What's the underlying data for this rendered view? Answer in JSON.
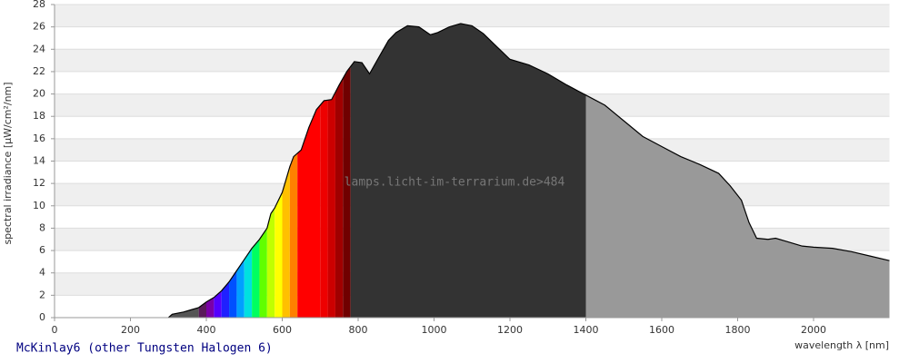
{
  "chart_data": {
    "type": "area",
    "title": "McKinlay6 (other Tungsten Halogen 6)",
    "watermark": "lamps.licht-im-terrarium.de>484",
    "x_label": "wavelength λ [nm]",
    "y_label": "spectral irradiance [µW/cm²/nm]",
    "x": [
      300,
      310,
      340,
      360,
      380,
      400,
      420,
      440,
      460,
      480,
      500,
      520,
      540,
      560,
      570,
      580,
      600,
      620,
      630,
      650,
      670,
      690,
      710,
      730,
      750,
      770,
      790,
      810,
      830,
      850,
      880,
      900,
      930,
      960,
      990,
      1010,
      1040,
      1070,
      1100,
      1130,
      1160,
      1200,
      1250,
      1300,
      1350,
      1400,
      1450,
      1500,
      1550,
      1600,
      1650,
      1700,
      1750,
      1780,
      1810,
      1830,
      1850,
      1880,
      1900,
      1930,
      1970,
      2000,
      2050,
      2100,
      2150,
      2200
    ],
    "values": [
      0,
      0.3,
      0.5,
      0.7,
      0.9,
      1.4,
      1.8,
      2.4,
      3.2,
      4.2,
      5.2,
      6.2,
      7.0,
      8.0,
      9.3,
      9.8,
      11.2,
      13.5,
      14.4,
      15.0,
      17.0,
      18.6,
      19.4,
      19.5,
      20.8,
      22.0,
      22.9,
      22.8,
      21.8,
      23.0,
      24.8,
      25.5,
      26.1,
      26.0,
      25.3,
      25.5,
      26.0,
      26.3,
      26.1,
      25.4,
      24.4,
      23.1,
      22.6,
      21.8,
      20.8,
      19.9,
      19.0,
      17.6,
      16.2,
      15.3,
      14.4,
      13.7,
      12.9,
      11.8,
      10.5,
      8.5,
      7.1,
      7.0,
      7.1,
      6.8,
      6.4,
      6.3,
      6.2,
      5.9,
      5.5,
      5.1
    ],
    "line_color": "#000000",
    "regions": [
      {
        "from": 300,
        "to": 380,
        "color": "#555555"
      },
      {
        "from": 380,
        "to": 400,
        "color": "#5a1a5a"
      },
      {
        "from": 400,
        "to": 420,
        "color": "#7a00a8"
      },
      {
        "from": 420,
        "to": 440,
        "color": "#5500ff"
      },
      {
        "from": 440,
        "to": 460,
        "color": "#2020ff"
      },
      {
        "from": 460,
        "to": 480,
        "color": "#0050ff"
      },
      {
        "from": 480,
        "to": 500,
        "color": "#00a0ff"
      },
      {
        "from": 500,
        "to": 520,
        "color": "#00e0e0"
      },
      {
        "from": 520,
        "to": 540,
        "color": "#00ff60"
      },
      {
        "from": 540,
        "to": 560,
        "color": "#60ff00"
      },
      {
        "from": 560,
        "to": 580,
        "color": "#c0ff00"
      },
      {
        "from": 580,
        "to": 600,
        "color": "#ffff00"
      },
      {
        "from": 600,
        "to": 620,
        "color": "#ffc000"
      },
      {
        "from": 620,
        "to": 640,
        "color": "#ff8000"
      },
      {
        "from": 640,
        "to": 700,
        "color": "#ff0000"
      },
      {
        "from": 700,
        "to": 720,
        "color": "#ee0000"
      },
      {
        "from": 720,
        "to": 740,
        "color": "#cc0000"
      },
      {
        "from": 740,
        "to": 760,
        "color": "#a00000"
      },
      {
        "from": 760,
        "to": 780,
        "color": "#700000"
      },
      {
        "from": 780,
        "to": 1400,
        "color": "#333333"
      },
      {
        "from": 1400,
        "to": 2200,
        "color": "#999999"
      }
    ],
    "xlim": [
      0,
      2200
    ],
    "xticks": [
      0,
      200,
      400,
      600,
      800,
      1000,
      1200,
      1400,
      1600,
      1800,
      2000
    ],
    "ylim": [
      0,
      28
    ],
    "yticks": [
      0,
      2,
      4,
      6,
      8,
      10,
      12,
      14,
      16,
      18,
      20,
      22,
      24,
      26,
      28
    ],
    "grid": true
  }
}
